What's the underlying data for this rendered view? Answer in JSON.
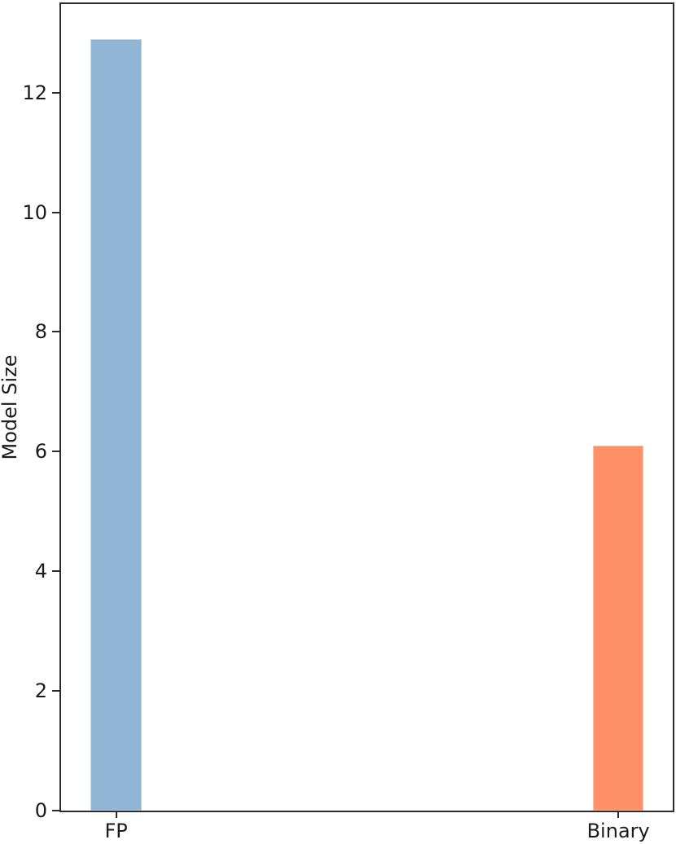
{
  "figure": {
    "background": "#ffffff",
    "spine_color": "#2b2b2b",
    "text_color": "#1b1b1b"
  },
  "chart_data": {
    "type": "bar",
    "categories": [
      "FP",
      "Binary"
    ],
    "values": [
      12.9,
      6.1
    ],
    "bar_colors": [
      "#91b5d5",
      "#ff8f66"
    ],
    "title": "",
    "xlabel": "",
    "ylabel": "Model Size",
    "ylim": [
      0,
      13.48
    ],
    "yticks": [
      0,
      2,
      4,
      6,
      8,
      10,
      12
    ],
    "grid": false,
    "legend": false,
    "bar_center_fractions": [
      0.09,
      0.911
    ],
    "bar_width_fraction": 0.0834
  }
}
